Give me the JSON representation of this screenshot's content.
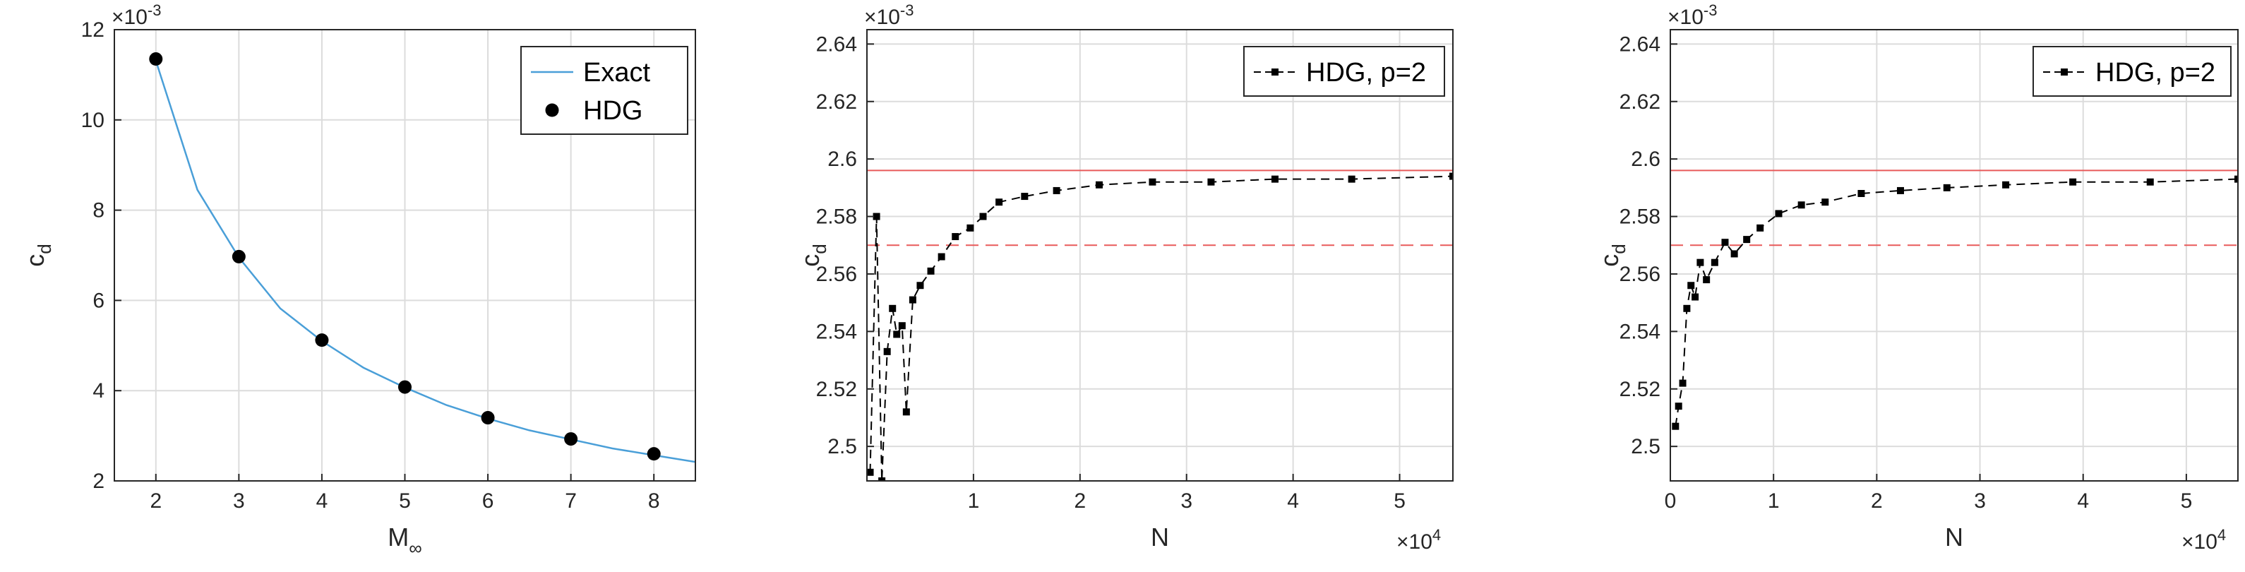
{
  "chart_data": [
    {
      "type": "line",
      "xlabel": "M",
      "xlabel_sub": "∞",
      "ylabel": "c",
      "ylabel_sub": "d",
      "xlim": [
        1.5,
        8.5
      ],
      "ylim": [
        2,
        12
      ],
      "xticks": [
        2,
        3,
        4,
        5,
        6,
        7,
        8
      ],
      "yticks": [
        2,
        4,
        6,
        8,
        10,
        12
      ],
      "y_multiplier_base": "×10",
      "y_multiplier_exp": "-3",
      "grid": true,
      "legend_position": "top-right",
      "series": [
        {
          "name": "Exact",
          "style": "line",
          "color": "#4a9fd8",
          "formula_points": "curve",
          "x": [
            2,
            2.5,
            3,
            3.5,
            4,
            4.5,
            5,
            5.5,
            6,
            6.5,
            7,
            7.5,
            8,
            8.5
          ],
          "values": [
            11.31,
            8.45,
            6.95,
            5.82,
            5.1,
            4.51,
            4.07,
            3.68,
            3.38,
            3.12,
            2.92,
            2.72,
            2.57,
            2.42
          ]
        },
        {
          "name": "HDG",
          "style": "marker",
          "color": "#000000",
          "x": [
            2,
            3,
            4,
            5,
            6,
            7,
            8
          ],
          "values": [
            11.35,
            6.97,
            5.12,
            4.08,
            3.4,
            2.93,
            2.6
          ]
        }
      ]
    },
    {
      "type": "line",
      "xlabel": "N",
      "ylabel": "c",
      "ylabel_sub": "d",
      "xlim": [
        0,
        5.5
      ],
      "ylim": [
        2.488,
        2.645
      ],
      "xticks": [
        1,
        2,
        3,
        4,
        5
      ],
      "yticks": [
        2.5,
        2.52,
        2.54,
        2.56,
        2.58,
        2.6,
        2.62,
        2.64
      ],
      "ytick_labels": [
        "2.5",
        "2.52",
        "2.54",
        "2.56",
        "2.58",
        "2.6",
        "2.62",
        "2.64"
      ],
      "x_multiplier_base": "×10",
      "x_multiplier_exp": "4",
      "y_multiplier_base": "×10",
      "y_multiplier_exp": "-3",
      "grid": true,
      "legend_position": "top-right",
      "reference_lines": [
        {
          "y": 2.596,
          "style": "solid",
          "color": "#e85a5a"
        },
        {
          "y": 2.57,
          "style": "dashed",
          "color": "#e85a5a"
        }
      ],
      "series": [
        {
          "name": "HDG, p=2",
          "style": "dashed-marker",
          "color": "#000000",
          "x": [
            0.03,
            0.09,
            0.14,
            0.19,
            0.24,
            0.28,
            0.33,
            0.37,
            0.43,
            0.5,
            0.6,
            0.7,
            0.83,
            0.97,
            1.09,
            1.24,
            1.48,
            1.78,
            2.18,
            2.68,
            3.23,
            3.83,
            4.55,
            5.5
          ],
          "values": [
            2.491,
            2.58,
            2.488,
            2.533,
            2.548,
            2.539,
            2.542,
            2.512,
            2.551,
            2.556,
            2.561,
            2.566,
            2.573,
            2.576,
            2.58,
            2.585,
            2.587,
            2.589,
            2.591,
            2.592,
            2.592,
            2.593,
            2.593,
            2.594
          ]
        }
      ]
    },
    {
      "type": "line",
      "xlabel": "N",
      "ylabel": "c",
      "ylabel_sub": "d",
      "xlim": [
        0,
        5.5
      ],
      "ylim": [
        2.488,
        2.645
      ],
      "xticks": [
        0,
        1,
        2,
        3,
        4,
        5
      ],
      "yticks": [
        2.5,
        2.52,
        2.54,
        2.56,
        2.58,
        2.6,
        2.62,
        2.64
      ],
      "ytick_labels": [
        "2.5",
        "2.52",
        "2.54",
        "2.56",
        "2.58",
        "2.6",
        "2.62",
        "2.64"
      ],
      "x_multiplier_base": "×10",
      "x_multiplier_exp": "4",
      "y_multiplier_base": "×10",
      "y_multiplier_exp": "-3",
      "grid": true,
      "legend_position": "top-right",
      "reference_lines": [
        {
          "y": 2.596,
          "style": "solid",
          "color": "#e85a5a"
        },
        {
          "y": 2.57,
          "style": "dashed",
          "color": "#e85a5a"
        }
      ],
      "series": [
        {
          "name": "HDG, p=2",
          "style": "dashed-marker",
          "color": "#000000",
          "x": [
            0.05,
            0.08,
            0.12,
            0.16,
            0.2,
            0.24,
            0.29,
            0.35,
            0.43,
            0.53,
            0.62,
            0.74,
            0.87,
            1.05,
            1.27,
            1.5,
            1.85,
            2.23,
            2.68,
            3.25,
            3.9,
            4.65,
            5.5
          ],
          "values": [
            2.507,
            2.514,
            2.522,
            2.548,
            2.556,
            2.552,
            2.564,
            2.558,
            2.564,
            2.571,
            2.567,
            2.572,
            2.576,
            2.581,
            2.584,
            2.585,
            2.588,
            2.589,
            2.59,
            2.591,
            2.592,
            2.592,
            2.593
          ]
        }
      ]
    }
  ]
}
